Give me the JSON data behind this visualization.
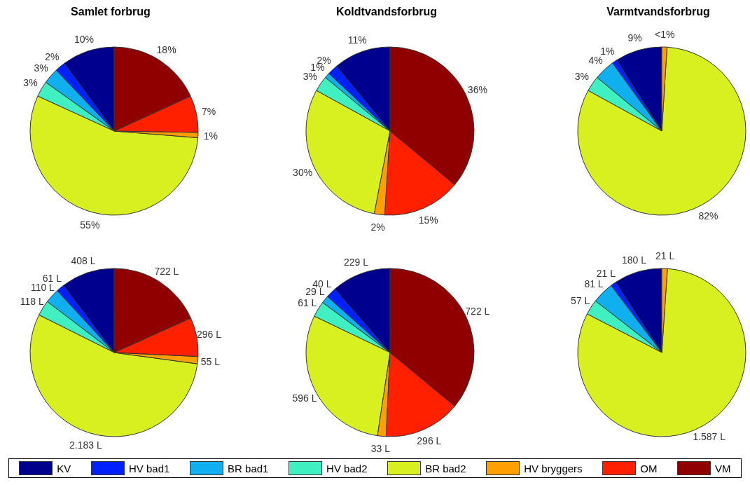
{
  "chart_data": [
    {
      "type": "pie",
      "title": "Samlet forbrug",
      "categories": [
        "KV",
        "HV bad1",
        "BR bad1",
        "HV bad2",
        "BR bad2",
        "HV bryggers",
        "OM",
        "VM"
      ],
      "colors": [
        "#00008f",
        "#0020ff",
        "#10b0f0",
        "#40f0c0",
        "#d8f020",
        "#ffa000",
        "#ff2000",
        "#900000"
      ],
      "values": [
        10,
        2,
        3,
        3,
        55,
        1,
        7,
        18
      ],
      "value_labels": [
        "10%",
        "2%",
        "3%",
        "3%",
        "55%",
        "1%",
        "7%",
        "18%"
      ],
      "legend": "bottom"
    },
    {
      "type": "pie",
      "title": "Koldtvandsforbrug",
      "categories": [
        null,
        null,
        null,
        null,
        null,
        null,
        null,
        null
      ],
      "colors": [
        "#00008f",
        "#0020ff",
        "#10b0f0",
        "#40f0c0",
        "#d8f020",
        "#ffa000",
        "#ff2000",
        "#900000"
      ],
      "values": [
        11,
        2,
        1,
        3,
        30,
        2,
        15,
        36
      ],
      "value_labels": [
        "11%",
        "2%",
        "1%",
        "3%",
        "30%",
        "2%",
        "15%",
        "36%"
      ]
    },
    {
      "type": "pie",
      "title": "Varmtvandsforbrug",
      "categories": [
        null,
        null,
        null,
        null,
        null,
        null,
        null,
        null
      ],
      "colors": [
        "#00008f",
        "#0020ff",
        "#10b0f0",
        "#40f0c0",
        "#d8f020",
        "#ffa000",
        "#ff2000",
        "#900000"
      ],
      "values": [
        9,
        1,
        4,
        3,
        82,
        1,
        null,
        null
      ],
      "value_labels": [
        "9%",
        "1%",
        "4%",
        "3%",
        "82%",
        "<1%",
        null,
        null
      ]
    },
    {
      "type": "pie",
      "categories": [
        null,
        null,
        null,
        null,
        null,
        null,
        null,
        null
      ],
      "colors": [
        "#00008f",
        "#0020ff",
        "#10b0f0",
        "#40f0c0",
        "#d8f020",
        "#ffa000",
        "#ff2000",
        "#900000"
      ],
      "values": [
        408,
        61,
        110,
        118,
        2183,
        55,
        296,
        722
      ],
      "value_labels": [
        "408 L",
        "61 L",
        "110 L",
        "118 L",
        "2.183 L",
        "55 L",
        "296 L",
        "722 L"
      ]
    },
    {
      "type": "pie",
      "categories": [
        null,
        null,
        null,
        null,
        null,
        null,
        null,
        null
      ],
      "colors": [
        "#00008f",
        "#0020ff",
        "#10b0f0",
        "#40f0c0",
        "#d8f020",
        "#ffa000",
        "#ff2000",
        "#900000"
      ],
      "values": [
        229,
        40,
        29,
        61,
        596,
        33,
        296,
        722
      ],
      "value_labels": [
        "229 L",
        "40 L",
        "29 L",
        "61 L",
        "596 L",
        "33 L",
        "296 L",
        "722 L"
      ]
    },
    {
      "type": "pie",
      "categories": [
        null,
        null,
        null,
        null,
        null,
        null,
        null,
        null
      ],
      "colors": [
        "#00008f",
        "#0020ff",
        "#10b0f0",
        "#40f0c0",
        "#d8f020",
        "#ffa000",
        "#ff2000",
        "#900000"
      ],
      "values": [
        180,
        21,
        81,
        57,
        1587,
        21,
        null,
        null
      ],
      "value_labels": [
        "180 L",
        "21 L",
        "81 L",
        "57 L",
        "1.587 L",
        "21 L",
        null,
        null
      ]
    }
  ]
}
